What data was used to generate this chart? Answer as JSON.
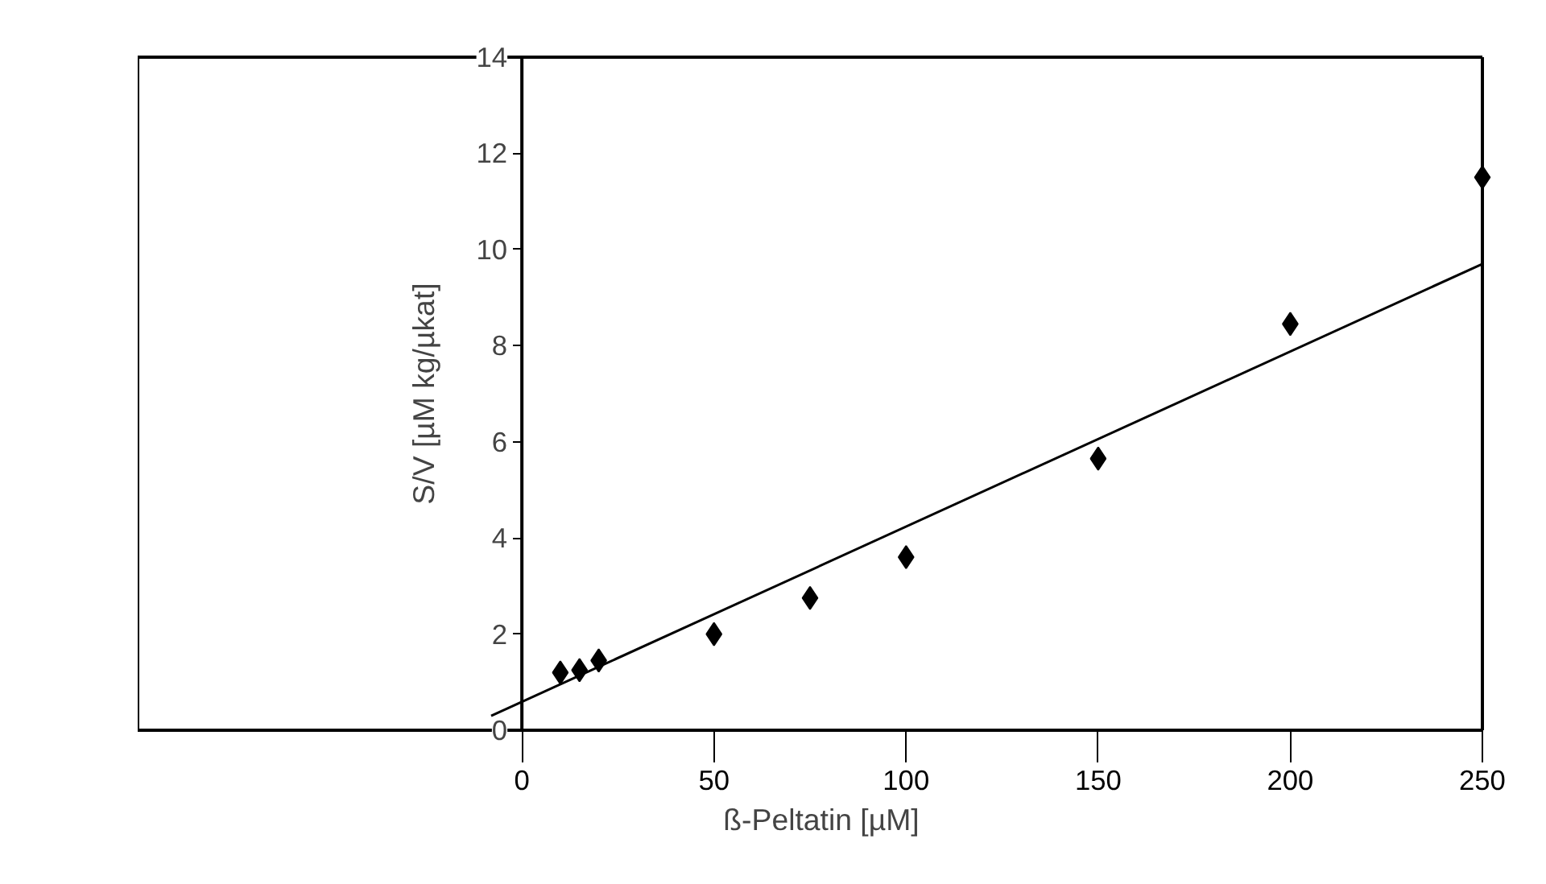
{
  "chart_data": {
    "type": "scatter",
    "xlabel": "ß-Peltatin [µM]",
    "ylabel": "S/V [µM kg/µkat]",
    "xlim": [
      -100,
      250
    ],
    "ylim": [
      0,
      14
    ],
    "xticks": [
      0,
      50,
      100,
      150,
      200,
      250
    ],
    "yticks": [
      0,
      2,
      4,
      6,
      8,
      10,
      12,
      14
    ],
    "grid": false,
    "series": [
      {
        "marker": "diamond",
        "color": "#000000",
        "x": [
          10,
          15,
          20,
          50,
          75,
          100,
          150,
          200,
          250
        ],
        "values": [
          1.2,
          1.25,
          1.45,
          2.0,
          2.75,
          3.6,
          5.65,
          8.45,
          11.5
        ]
      },
      {
        "type": "line",
        "color": "#000000",
        "x": [
          -8,
          250
        ],
        "values": [
          0.3,
          9.7
        ],
        "line_style": "solid"
      }
    ]
  }
}
